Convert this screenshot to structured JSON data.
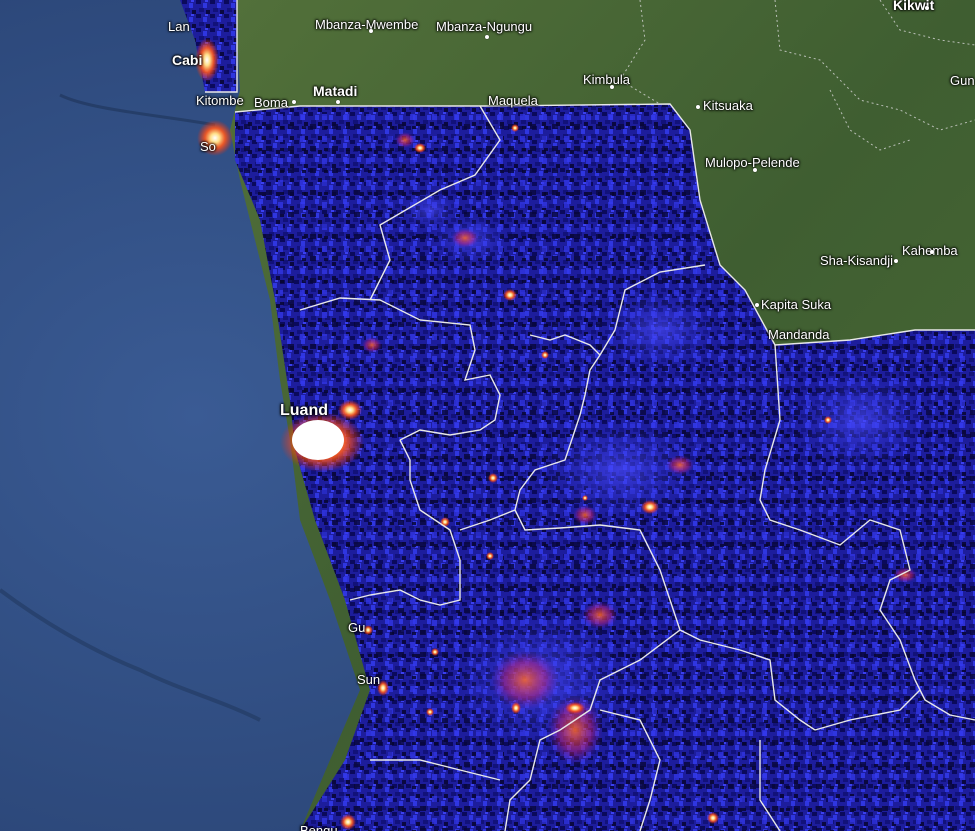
{
  "map": {
    "colors": {
      "ocean": "#2f4f86",
      "land": "#3c5a2e",
      "overlay_low": "#0b0a5c",
      "overlay_mid": "#2a2fd0",
      "overlay_high": "#ff5a1e",
      "overlay_peak": "#ffffff",
      "border": "#e6e6e6"
    },
    "places": [
      {
        "name": "Mbanza-Mwembe",
        "cls": "",
        "dot": true
      },
      {
        "name": "Mbanza-Ngungu",
        "cls": "",
        "dot": true
      },
      {
        "name": "Kikwit",
        "cls": "major",
        "dot": true
      },
      {
        "name": "Matadi",
        "cls": "major",
        "dot": true
      },
      {
        "name": "Kimbula",
        "cls": "",
        "dot": true
      },
      {
        "name": "Maquela",
        "cls": "",
        "dot": false
      },
      {
        "name": "Kitsuaka",
        "cls": "",
        "dot": true
      },
      {
        "name": "Mulopo-Pelende",
        "cls": "",
        "dot": true
      },
      {
        "name": "Sha-Kisandji",
        "cls": "",
        "dot": true
      },
      {
        "name": "Kahemba",
        "cls": "",
        "dot": true
      },
      {
        "name": "Kapita Suka",
        "cls": "",
        "dot": true
      },
      {
        "name": "Mandanda",
        "cls": "",
        "dot": false
      },
      {
        "name": "Kitombe",
        "cls": "",
        "dot": false
      },
      {
        "name": "Boma",
        "cls": "",
        "dot": true
      },
      {
        "name": "Cabi",
        "cls": "major",
        "dot": false
      },
      {
        "name": "Lan",
        "cls": "",
        "dot": false
      },
      {
        "name": "So",
        "cls": "",
        "dot": false
      },
      {
        "name": "Luand",
        "cls": "big",
        "dot": false
      },
      {
        "name": "Gu",
        "cls": "",
        "dot": false
      },
      {
        "name": "Sun",
        "cls": "",
        "dot": false
      },
      {
        "name": "Gun",
        "cls": "",
        "dot": false
      },
      {
        "name": "Bengu",
        "cls": "",
        "dot": false
      }
    ]
  }
}
